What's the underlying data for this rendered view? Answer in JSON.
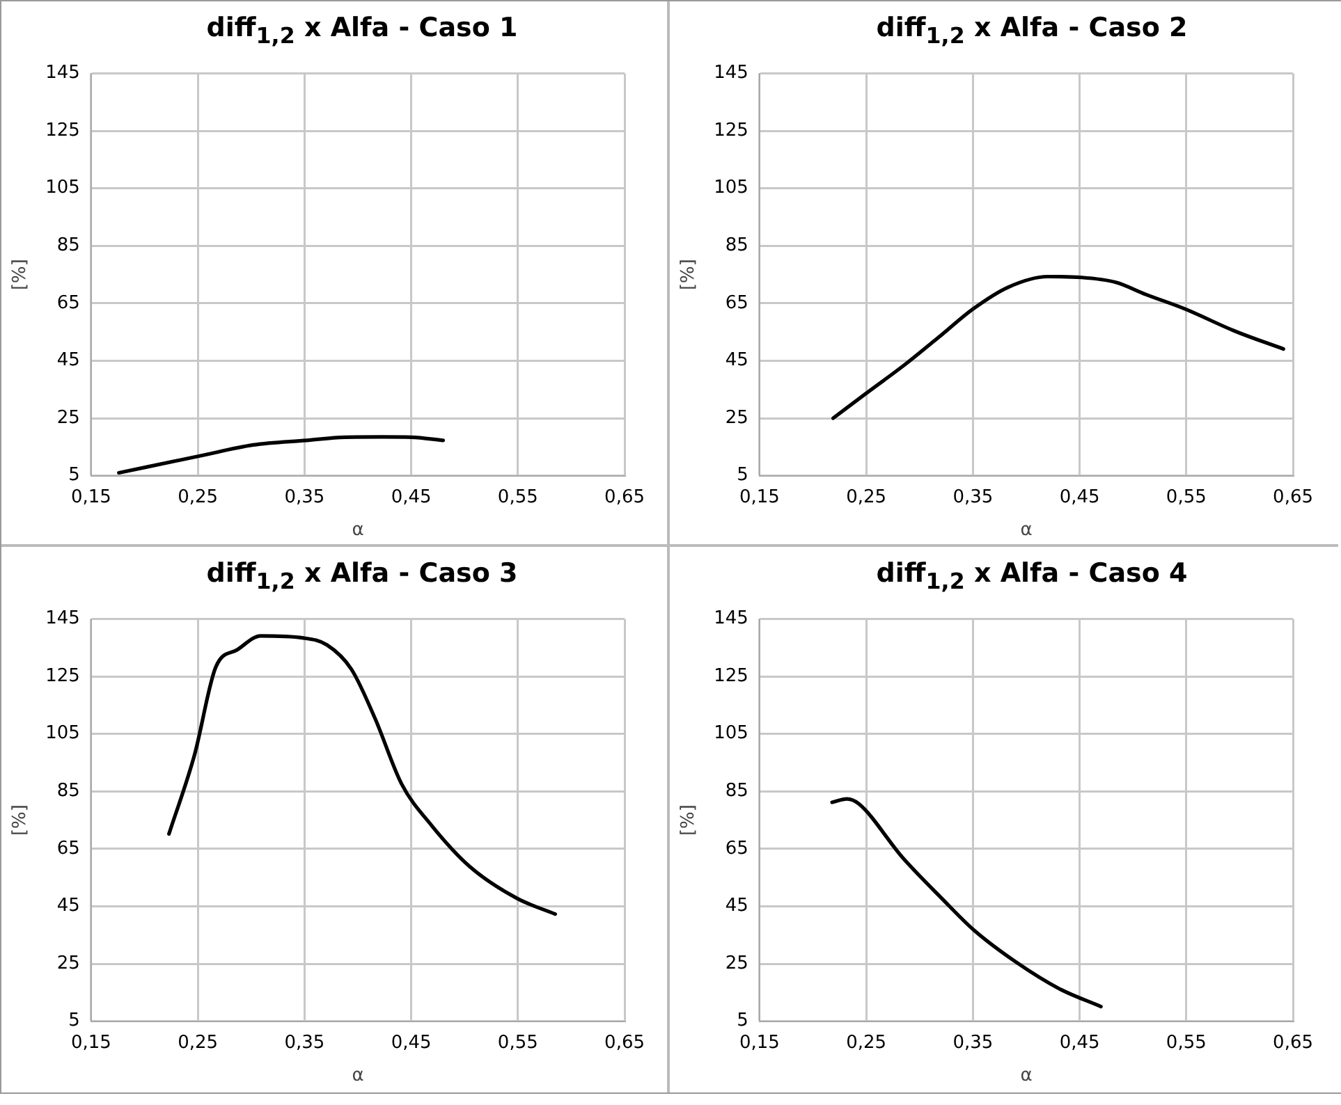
{
  "chart_data": [
    {
      "type": "line",
      "title": "diff$_{1,2}$ x Alfa - Caso 1",
      "xlabel": "α",
      "ylabel": "[%]",
      "xlim": [
        0.15,
        0.65
      ],
      "xticks": [
        {
          "value": 0.15,
          "label": "0,15"
        },
        {
          "value": 0.25,
          "label": "0,25"
        },
        {
          "value": 0.35,
          "label": "0,35"
        },
        {
          "value": 0.45,
          "label": "0,45"
        },
        {
          "value": 0.55,
          "label": "0,55"
        },
        {
          "value": 0.65,
          "label": "0,65"
        }
      ],
      "ylim": [
        5,
        145
      ],
      "yticks": [
        5,
        25,
        45,
        65,
        85,
        105,
        125,
        145
      ],
      "grid": true,
      "marker": "none",
      "line_style": "solid",
      "series": [
        {
          "color": "#000000",
          "x": [
            0.176,
            0.251,
            0.302,
            0.352,
            0.388,
            0.423,
            0.45,
            0.48
          ],
          "values": [
            6.0,
            11.8,
            15.7,
            17.3,
            18.4,
            18.5,
            18.4,
            17.3
          ]
        }
      ]
    },
    {
      "type": "line",
      "title": "diff$_{1,2}$ x Alfa - Caso 2",
      "xlabel": "α",
      "ylabel": "[%]",
      "xlim": [
        0.15,
        0.65
      ],
      "xticks": [
        {
          "value": 0.15,
          "label": "0,15"
        },
        {
          "value": 0.25,
          "label": "0,25"
        },
        {
          "value": 0.35,
          "label": "0,35"
        },
        {
          "value": 0.45,
          "label": "0,45"
        },
        {
          "value": 0.55,
          "label": "0,55"
        },
        {
          "value": 0.65,
          "label": "0,65"
        }
      ],
      "ylim": [
        5,
        145
      ],
      "yticks": [
        5,
        25,
        45,
        65,
        85,
        105,
        125,
        145
      ],
      "grid": true,
      "marker": "none",
      "line_style": "solid",
      "series": [
        {
          "color": "#000000",
          "x": [
            0.219,
            0.249,
            0.286,
            0.318,
            0.35,
            0.383,
            0.42,
            0.452,
            0.484,
            0.512,
            0.549,
            0.595,
            0.641
          ],
          "values": [
            25.0,
            33.4,
            43.6,
            53.2,
            63.0,
            70.6,
            74.3,
            74.0,
            72.3,
            68.1,
            63.0,
            55.4,
            49.1
          ]
        }
      ]
    },
    {
      "type": "line",
      "title": "diff$_{1,2}$ x Alfa - Caso 3",
      "xlabel": "α",
      "ylabel": "[%]",
      "xlim": [
        0.15,
        0.65
      ],
      "xticks": [
        {
          "value": 0.15,
          "label": "0,15"
        },
        {
          "value": 0.25,
          "label": "0,25"
        },
        {
          "value": 0.35,
          "label": "0,35"
        },
        {
          "value": 0.45,
          "label": "0,45"
        },
        {
          "value": 0.55,
          "label": "0,55"
        },
        {
          "value": 0.65,
          "label": "0,65"
        }
      ],
      "ylim": [
        5,
        145
      ],
      "yticks": [
        5,
        25,
        45,
        65,
        85,
        105,
        125,
        145
      ],
      "grid": true,
      "marker": "none",
      "line_style": "solid",
      "series": [
        {
          "color": "#000000",
          "x": [
            0.223,
            0.247,
            0.267,
            0.287,
            0.309,
            0.349,
            0.371,
            0.394,
            0.416,
            0.441,
            0.469,
            0.505,
            0.549,
            0.585
          ],
          "values": [
            70.2,
            97.8,
            128.4,
            134.3,
            139.1,
            138.4,
            136.0,
            127.5,
            110.5,
            87.6,
            73.2,
            58.8,
            47.8,
            42.3
          ]
        }
      ]
    },
    {
      "type": "line",
      "title": "diff$_{1,2}$ x Alfa - Caso 4",
      "xlabel": "α",
      "ylabel": "[%]",
      "xlim": [
        0.15,
        0.65
      ],
      "xticks": [
        {
          "value": 0.15,
          "label": "0,15"
        },
        {
          "value": 0.25,
          "label": "0,25"
        },
        {
          "value": 0.35,
          "label": "0,35"
        },
        {
          "value": 0.45,
          "label": "0,45"
        },
        {
          "value": 0.55,
          "label": "0,55"
        },
        {
          "value": 0.65,
          "label": "0,65"
        }
      ],
      "ylim": [
        5,
        145
      ],
      "yticks": [
        5,
        25,
        45,
        65,
        85,
        105,
        125,
        145
      ],
      "grid": true,
      "marker": "none",
      "line_style": "solid",
      "series": [
        {
          "color": "#000000",
          "x": [
            0.218,
            0.232,
            0.243,
            0.284,
            0.321,
            0.351,
            0.39,
            0.431,
            0.47
          ],
          "values": [
            81.2,
            82.4,
            80.7,
            62.0,
            47.7,
            36.7,
            25.7,
            16.3,
            10.1
          ]
        }
      ]
    }
  ]
}
